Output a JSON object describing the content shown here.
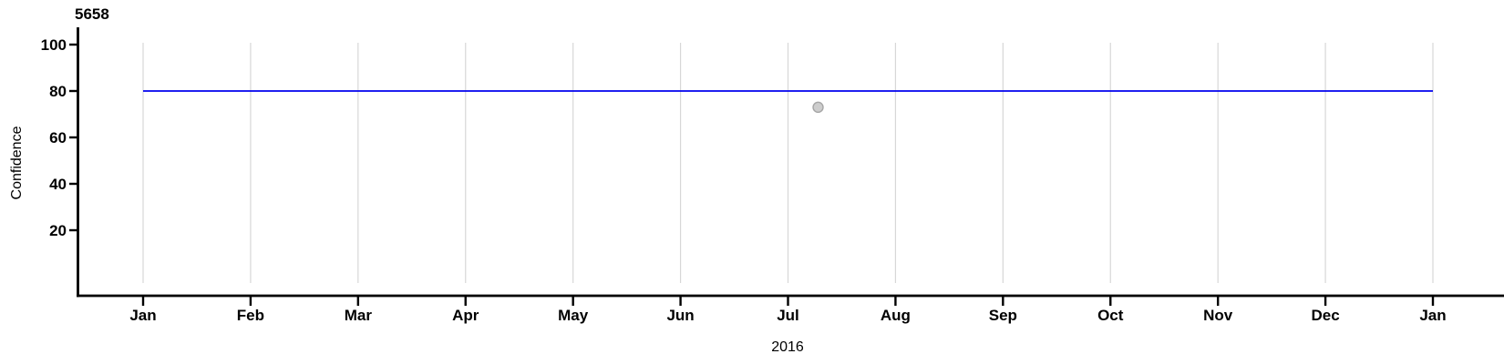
{
  "figure": {
    "background_color": "#ffffff",
    "axis_color": "#000000",
    "gridline_color": "#d7d7d7"
  },
  "chart_data": {
    "type": "line",
    "title": "5658",
    "xlabel": "2016",
    "ylabel": "Confidence",
    "x_tick_labels": [
      "Jan",
      "Feb",
      "Mar",
      "Apr",
      "May",
      "Jun",
      "Jul",
      "Aug",
      "Sep",
      "Oct",
      "Nov",
      "Dec",
      "Jan"
    ],
    "y_ticks": [
      100,
      80,
      60,
      40,
      20
    ],
    "ylim": [
      -8.6,
      107.5
    ],
    "xlim_months": [
      0,
      12
    ],
    "grid": {
      "vertical": true,
      "horizontal": false,
      "color": "#d7d7d7"
    },
    "legend": "none",
    "series": [
      {
        "name": "confidence-threshold-line",
        "type": "hline",
        "y": 80,
        "x_start_month": 0,
        "x_end_month": 12,
        "color": "#0000ee",
        "stroke_width": 1.8
      }
    ],
    "points": [
      {
        "name": "observation-point",
        "month_index": 6.28,
        "value": 73,
        "fill": "#cdcdcd",
        "stroke": "#a6a6a6",
        "radius": 5.5
      }
    ]
  }
}
